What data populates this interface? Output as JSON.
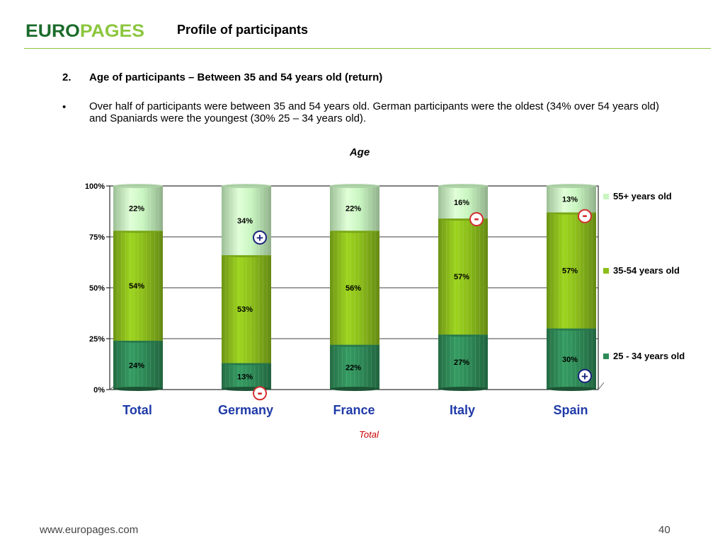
{
  "header": {
    "logo_text": "EUROPAGES",
    "title": "Profile of participants"
  },
  "section": {
    "number": "2.",
    "heading": "Age of participants – Between 35 and 54 years old (return)",
    "bullet": "•",
    "paragraph": "Over half of participants were between 35 and 54 years old. German participants were the oldest (34% over 54 years old) and Spaniards were the youngest (30% 25 – 34 years old)."
  },
  "chart_data": {
    "type": "bar",
    "stacked": true,
    "title": "Age",
    "xlabel": "Total",
    "ylabel": "",
    "ylim": [
      0,
      100
    ],
    "yticks": [
      "0%",
      "25%",
      "50%",
      "75%",
      "100%"
    ],
    "categories": [
      "Total",
      "Germany",
      "France",
      "Italy",
      "Spain"
    ],
    "series": [
      {
        "name": "25 - 34 years old",
        "color": "#2e8b57",
        "values": [
          24,
          13,
          22,
          27,
          30
        ],
        "labels": [
          "24%",
          "13%",
          "22%",
          "27%",
          "30%"
        ]
      },
      {
        "name": "35-54 years old",
        "color": "#8cbe1a",
        "values": [
          54,
          53,
          56,
          57,
          57
        ],
        "labels": [
          "54%",
          "53%",
          "56%",
          "57%",
          "57%"
        ]
      },
      {
        "name": "55+ years old",
        "color": "#c8f5c0",
        "values": [
          22,
          34,
          22,
          16,
          13
        ],
        "labels": [
          "22%",
          "34%",
          "22%",
          "16%",
          "13%"
        ]
      }
    ],
    "legend_position": "right",
    "grid": true,
    "markers": [
      {
        "category": "Germany",
        "series": "55+ years old",
        "symbol": "+"
      },
      {
        "category": "Germany",
        "series": "25 - 34 years old",
        "symbol": "-"
      },
      {
        "category": "Italy",
        "series": "55+ years old",
        "symbol": "-"
      },
      {
        "category": "Spain",
        "series": "55+ years old",
        "symbol": "-"
      },
      {
        "category": "Spain",
        "series": "25 - 34 years old",
        "symbol": "+"
      }
    ],
    "colors": {
      "plus_marker": "#1a237e",
      "minus_marker": "#d32f2f",
      "category_labels": "#1f3aa8"
    }
  },
  "footer": {
    "url": "www.europages.com",
    "page": "40"
  }
}
